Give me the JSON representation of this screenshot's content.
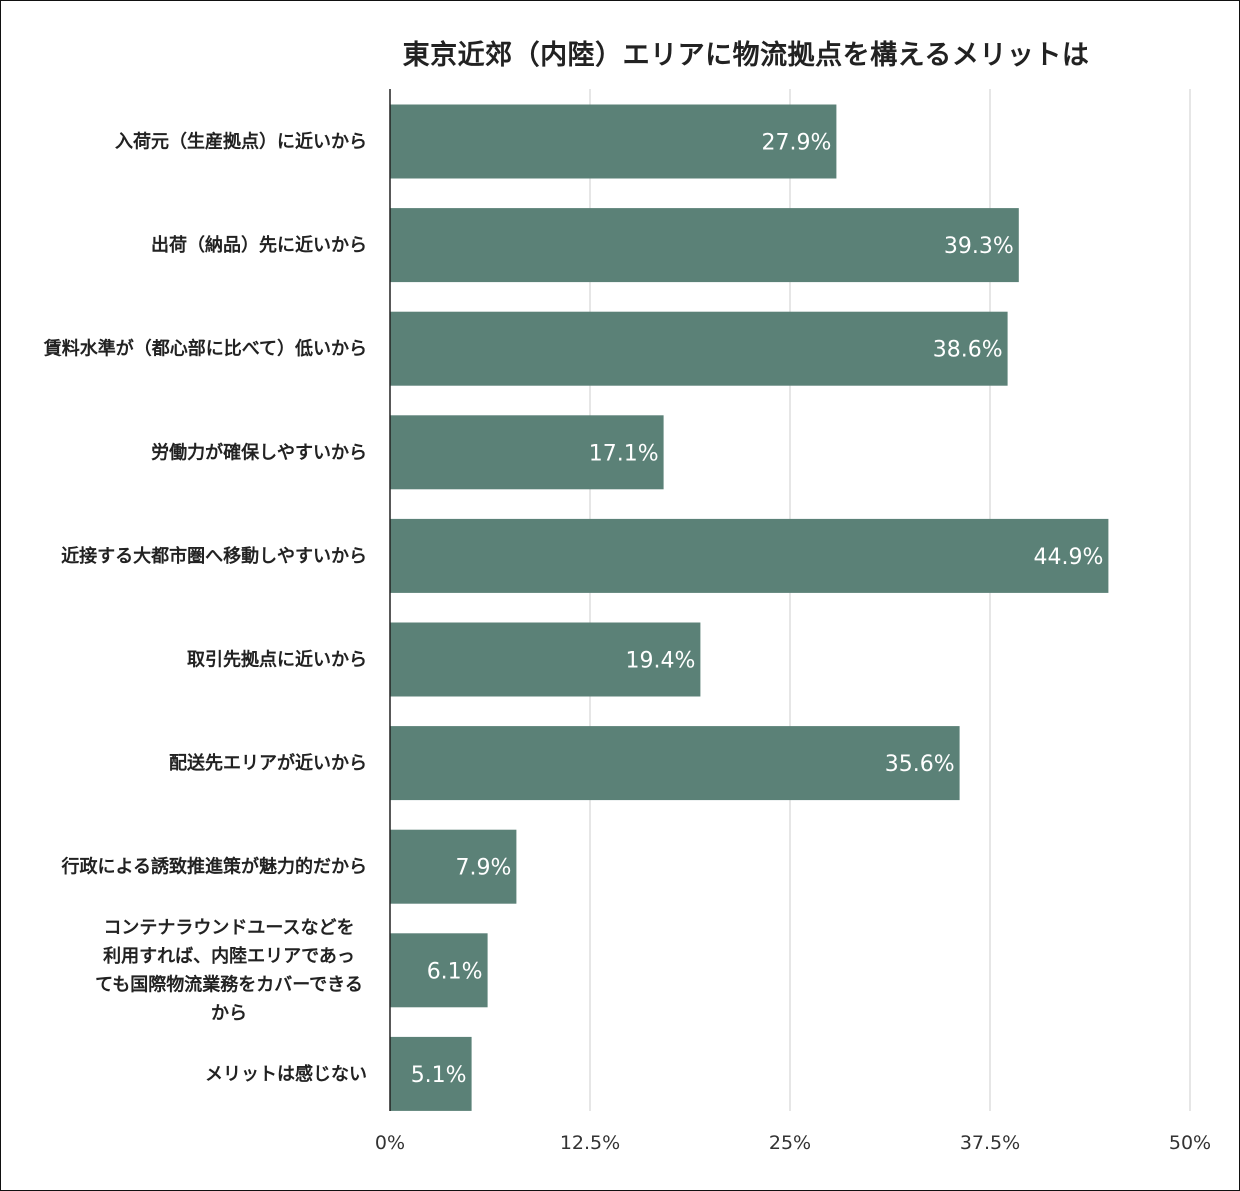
{
  "chart_data": {
    "type": "bar",
    "orientation": "horizontal",
    "title": "東京近郊（内陸）エリアに物流拠点を構えるメリットは",
    "categories": [
      [
        "入荷元（生産拠点）に近いから"
      ],
      [
        "出荷（納品）先に近いから"
      ],
      [
        "賃料水準が（都心部に比べて）低いから"
      ],
      [
        "労働力が確保しやすいから"
      ],
      [
        "近接する大都市圏へ移動しやすいから"
      ],
      [
        "取引先拠点に近いから"
      ],
      [
        "配送先エリアが近いから"
      ],
      [
        "行政による誘致推進策が魅力的だから"
      ],
      [
        "コンテナラウンドユースなどを",
        "利用すれば、内陸エリアであっ",
        "ても国際物流業務をカバーできる",
        "から"
      ],
      [
        "メリットは感じない"
      ]
    ],
    "values": [
      27.9,
      39.3,
      38.6,
      17.1,
      44.9,
      19.4,
      35.6,
      7.9,
      6.1,
      5.1
    ],
    "value_labels": [
      "27.9%",
      "39.3%",
      "38.6%",
      "17.1%",
      "44.9%",
      "19.4%",
      "35.6%",
      "7.9%",
      "6.1%",
      "5.1%"
    ],
    "xlim": [
      0,
      50
    ],
    "x_ticks": [
      0,
      12.5,
      25,
      37.5,
      50
    ],
    "x_tick_labels": [
      "0%",
      "12.5%",
      "25%",
      "37.5%",
      "50%"
    ],
    "grid": true,
    "bar_color": "#5b8177",
    "grid_color": "#cccccc"
  }
}
